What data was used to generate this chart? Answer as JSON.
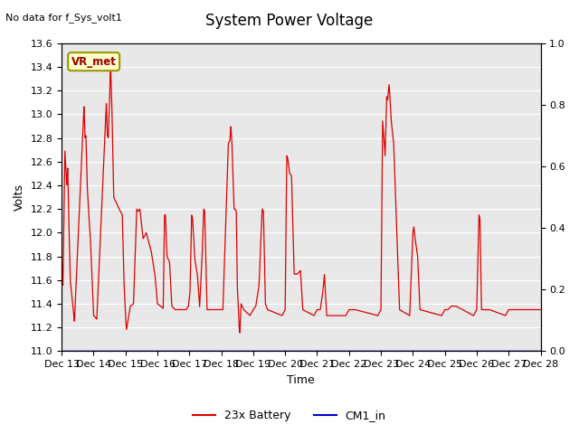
{
  "title": "System Power Voltage",
  "subtitle": "No data for f_Sys_volt1",
  "xlabel": "Time",
  "ylabel_left": "Volts",
  "ylim_left": [
    11.0,
    13.6
  ],
  "ylim_right": [
    0.0,
    1.0
  ],
  "yticks_left": [
    11.0,
    11.2,
    11.4,
    11.6,
    11.8,
    12.0,
    12.2,
    12.4,
    12.6,
    12.8,
    13.0,
    13.2,
    13.4,
    13.6
  ],
  "yticks_right": [
    0.0,
    0.2,
    0.4,
    0.6,
    0.8,
    1.0
  ],
  "x_labels": [
    "Dec 13",
    "Dec 14",
    "Dec 15",
    "Dec 16",
    "Dec 17",
    "Dec 18",
    "Dec 19",
    "Dec 20",
    "Dec 21",
    "Dec 22",
    "Dec 23",
    "Dec 24",
    "Dec 25",
    "Dec 26",
    "Dec 27",
    "Dec 28"
  ],
  "battery_color": "#dd0000",
  "cm1_color": "#0000cc",
  "legend_label_battery": "23x Battery",
  "legend_label_cm1": "CM1_in",
  "vr_met_label": "VR_met",
  "background_color": "#ffffff",
  "plot_bg_color": "#e8e8e8",
  "grid_color": "#ffffff",
  "title_fontsize": 12,
  "label_fontsize": 9,
  "tick_fontsize": 8
}
